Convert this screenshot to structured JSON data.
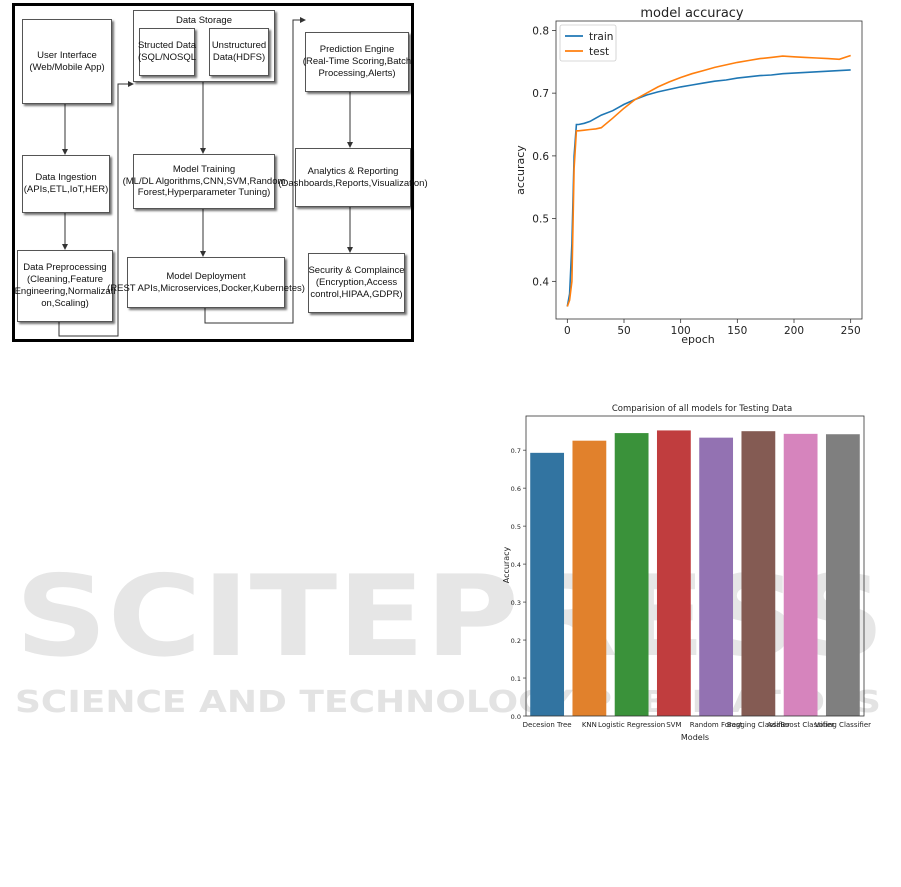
{
  "watermark": {
    "brand": "SCITEPRESS",
    "tagline": "SCIENCE AND TECHNOLOGY PUBLICATIONS"
  },
  "diagram": {
    "data_storage": {
      "title": "Data Storage",
      "structured": [
        "Structed Data",
        "(SQL/NOSQL"
      ],
      "unstructured": [
        "Unstructured",
        "Data(HDFS)"
      ]
    },
    "user_interface": [
      "User Interface",
      "(Web/Mobile App)"
    ],
    "data_ingestion": [
      "Data Ingestion",
      "(APIs,ETL,IoT,HER)"
    ],
    "data_preprocessing": [
      "Data Preprocessing",
      "(Cleaning,Feature",
      "Engineering,Normalizati",
      "on,Scaling)"
    ],
    "model_training": [
      "Model Training",
      "(ML/DL Algorithms,CNN,SVM,Random",
      "Forest,Hyperparameter Tuning)"
    ],
    "model_deployment": [
      "Model Deployment",
      "(REST APIs,Microservices,Docker,Kubernetes)"
    ],
    "prediction_engine": [
      "Prediction Engine",
      "(Real-Time Scoring,Batch",
      "Processing,Alerts)"
    ],
    "analytics": [
      "Analytics & Reporting",
      "(Dashboards,Reports,Visualization)"
    ],
    "security": [
      "Security & Complaince",
      "(Encryption,Access",
      "control,HIPAA,GDPR)"
    ]
  },
  "chart_data": [
    {
      "type": "line",
      "title": "model accuracy",
      "xlabel": "epoch",
      "ylabel": "accuracy",
      "xlim": [
        -10,
        260
      ],
      "ylim": [
        0.34,
        0.815
      ],
      "xticks": [
        0,
        50,
        100,
        150,
        200,
        250
      ],
      "yticks": [
        0.4,
        0.5,
        0.6,
        0.7,
        0.8
      ],
      "legend_position": "top-left",
      "series": [
        {
          "name": "train",
          "color": "#1f77b4",
          "x": [
            0,
            2,
            4,
            6,
            8,
            10,
            15,
            20,
            25,
            30,
            40,
            50,
            60,
            70,
            80,
            90,
            100,
            110,
            120,
            130,
            140,
            150,
            160,
            170,
            180,
            190,
            200,
            210,
            220,
            230,
            240,
            250
          ],
          "y": [
            0.36,
            0.38,
            0.46,
            0.6,
            0.65,
            0.65,
            0.652,
            0.655,
            0.66,
            0.665,
            0.672,
            0.682,
            0.69,
            0.697,
            0.702,
            0.706,
            0.71,
            0.713,
            0.716,
            0.719,
            0.721,
            0.724,
            0.726,
            0.728,
            0.729,
            0.731,
            0.732,
            0.733,
            0.734,
            0.735,
            0.736,
            0.737
          ]
        },
        {
          "name": "test",
          "color": "#ff7f0e",
          "x": [
            0,
            2,
            4,
            6,
            8,
            10,
            15,
            20,
            25,
            30,
            40,
            50,
            60,
            70,
            80,
            90,
            100,
            110,
            120,
            130,
            140,
            150,
            160,
            170,
            180,
            190,
            200,
            210,
            220,
            230,
            240,
            250
          ],
          "y": [
            0.36,
            0.37,
            0.4,
            0.58,
            0.64,
            0.64,
            0.641,
            0.642,
            0.643,
            0.645,
            0.66,
            0.676,
            0.69,
            0.7,
            0.71,
            0.718,
            0.725,
            0.731,
            0.736,
            0.741,
            0.745,
            0.749,
            0.752,
            0.755,
            0.757,
            0.759,
            0.758,
            0.757,
            0.756,
            0.755,
            0.754,
            0.76
          ]
        }
      ]
    },
    {
      "type": "bar",
      "title": "Comparision of all models for Testing Data",
      "xlabel": "Models",
      "ylabel": "Accuracy",
      "ylim": [
        0,
        0.79
      ],
      "yticks": [
        0.0,
        0.1,
        0.2,
        0.3,
        0.4,
        0.5,
        0.6,
        0.7
      ],
      "categories": [
        "Decesion Tree",
        "KNN",
        "Logistic Regression",
        "SVM",
        "Random Forest",
        "Bagging Classifier",
        "AdaBoost Classifier",
        "Voting Classifier"
      ],
      "values": [
        0.693,
        0.725,
        0.745,
        0.752,
        0.733,
        0.75,
        0.743,
        0.742
      ],
      "colors": [
        "#3274a1",
        "#e1812c",
        "#3a923a",
        "#c03d3e",
        "#9372b2",
        "#845b53",
        "#d684bd",
        "#7f7f7f"
      ]
    }
  ]
}
